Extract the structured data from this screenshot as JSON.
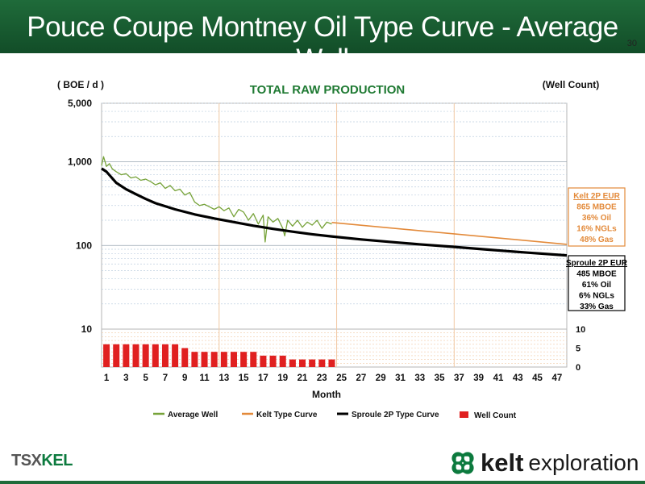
{
  "header": {
    "title": "Pouce Coupe Montney Oil Type Curve - Average Well",
    "page_number": "30"
  },
  "footer": {
    "tsx_prefix": "TSX",
    "tsx_ticker": "KEL",
    "brand_name": "kelt",
    "brand_suffix": "exploration",
    "brand_color": "#0c7a3e"
  },
  "chart_data": {
    "type": "line",
    "title": "TOTAL RAW PRODUCTION",
    "ylabel": "( BOE / d )",
    "y2label": "(Well Count)",
    "xlabel": "Month",
    "yscale": "log",
    "ylim": [
      10,
      5000
    ],
    "ytick_labels": [
      "5,000",
      "1,000",
      "100",
      "10"
    ],
    "y2_ticks": [
      "10",
      "5",
      "0"
    ],
    "xlim": [
      0.5,
      48
    ],
    "x_tick_labels": [
      "1",
      "3",
      "5",
      "7",
      "9",
      "11",
      "13",
      "15",
      "17",
      "19",
      "21",
      "23",
      "25",
      "27",
      "29",
      "31",
      "33",
      "35",
      "37",
      "39",
      "41",
      "43",
      "45",
      "47"
    ],
    "grid": true,
    "legend_position": "bottom",
    "series": [
      {
        "name": "Average Well",
        "color": "#77a33a",
        "x": [
          0.5,
          0.7,
          1,
          1.3,
          1.6,
          2,
          2.5,
          3,
          3.5,
          4,
          4.5,
          5,
          5.5,
          6,
          6.5,
          7,
          7.5,
          8,
          8.5,
          9,
          9.5,
          10,
          10.5,
          11,
          11.5,
          12,
          12.5,
          13,
          13.5,
          14,
          14.5,
          15,
          15.5,
          16,
          16.5,
          17,
          17.2,
          17.5,
          18,
          18.5,
          19,
          19.2,
          19.5,
          20,
          20.5,
          21,
          21.5,
          22,
          22.5,
          23,
          23.5,
          24
        ],
        "y": [
          900,
          1150,
          880,
          950,
          820,
          760,
          700,
          720,
          640,
          660,
          600,
          620,
          580,
          530,
          560,
          480,
          520,
          450,
          470,
          400,
          430,
          330,
          300,
          310,
          290,
          270,
          290,
          260,
          280,
          220,
          270,
          250,
          200,
          240,
          180,
          230,
          110,
          220,
          190,
          210,
          160,
          130,
          200,
          170,
          200,
          165,
          190,
          175,
          200,
          160,
          190,
          180
        ]
      },
      {
        "name": "Kelt Type Curve",
        "color": "#e38a3a",
        "x": [
          24,
          48
        ],
        "y": [
          188,
          103
        ]
      },
      {
        "name": "Sproule 2P Type Curve",
        "color": "#000000",
        "x": [
          0.5,
          1,
          2,
          3,
          4,
          5,
          6,
          8,
          10,
          12,
          14,
          16,
          18,
          20,
          22,
          24,
          27,
          30,
          33,
          36,
          40,
          44,
          48
        ],
        "y": [
          830,
          760,
          560,
          470,
          410,
          360,
          320,
          270,
          235,
          210,
          190,
          172,
          158,
          146,
          136,
          128,
          118,
          110,
          103,
          97,
          89,
          82,
          76
        ]
      },
      {
        "name": "Well Count",
        "type": "bar",
        "color": "#e02020",
        "x": [
          1,
          2,
          3,
          4,
          5,
          6,
          7,
          8,
          9,
          10,
          11,
          12,
          13,
          14,
          15,
          16,
          17,
          18,
          19,
          20,
          21,
          22,
          23,
          24
        ],
        "values": [
          6,
          6,
          6,
          6,
          6,
          6,
          6,
          6,
          5,
          4,
          4,
          4,
          4,
          4,
          4,
          4,
          3,
          3,
          3,
          2,
          2,
          2,
          2,
          2
        ]
      }
    ],
    "annotations": {
      "kelt_box": {
        "lines": [
          "Kelt 2P EUR",
          "865 MBOE",
          "36% Oil",
          "16% NGLs",
          "48% Gas"
        ],
        "color": "#e38a3a"
      },
      "sproule_box": {
        "lines": [
          "Sproule 2P EUR",
          "485 MBOE",
          "61% Oil",
          "6% NGLs",
          "33% Gas"
        ],
        "color": "#000000"
      }
    }
  }
}
